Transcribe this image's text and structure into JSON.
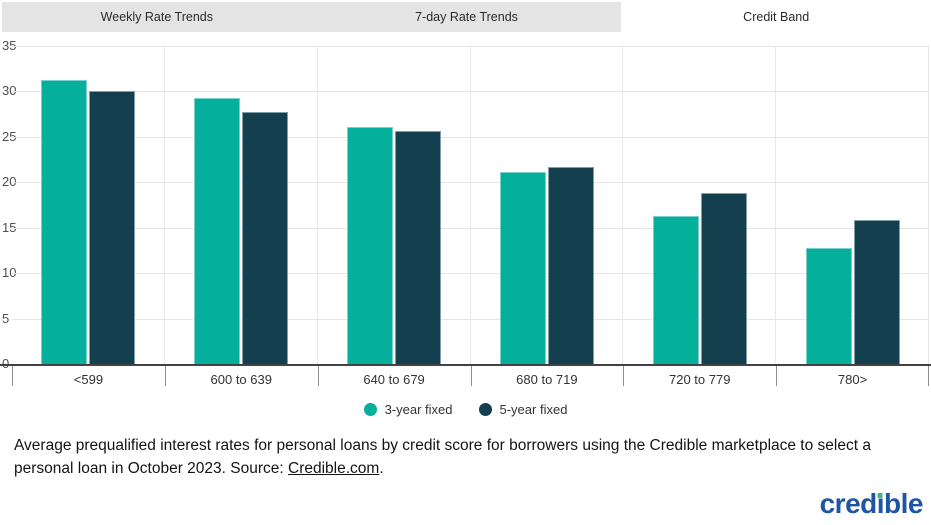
{
  "tabs": [
    {
      "label": "Weekly Rate Trends",
      "active": false
    },
    {
      "label": "7-day Rate Trends",
      "active": false
    },
    {
      "label": "Credit Band",
      "active": true
    }
  ],
  "chart_data": {
    "type": "bar",
    "title": "",
    "categories": [
      "<599",
      "600 to 639",
      "640 to 679",
      "680 to 719",
      "720 to 779",
      "780>"
    ],
    "series": [
      {
        "name": "3-year fixed",
        "color": "#04B09B",
        "values": [
          31.3,
          29.3,
          26.1,
          21.1,
          16.3,
          12.8
        ]
      },
      {
        "name": "5-year fixed",
        "color": "#133F4F",
        "values": [
          30.0,
          27.7,
          25.6,
          21.7,
          18.8,
          15.8
        ]
      }
    ],
    "xlabel": "",
    "ylabel": "",
    "ylim": [
      0,
      35
    ],
    "ytick_step": 5,
    "grid": true,
    "legend_position": "bottom"
  },
  "caption": {
    "text_before": "Average prequalified interest rates for personal loans by credit score for borrowers using the Credible marketplace to select a personal loan in October 2023. Source: ",
    "link_text": "Credible.com",
    "text_after": "."
  },
  "logo": {
    "text": "credible"
  }
}
